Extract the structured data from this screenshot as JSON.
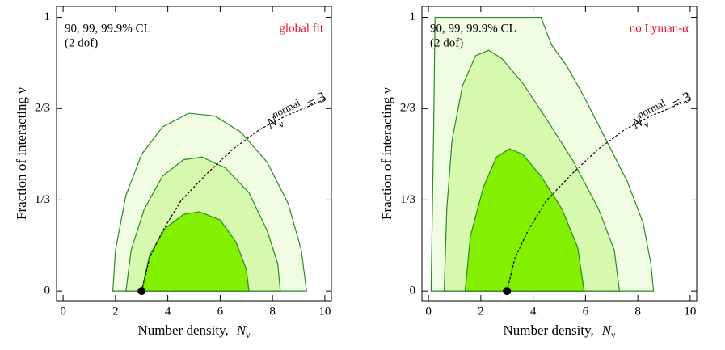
{
  "chart_data": [
    {
      "type": "contour",
      "annotations": [
        "90, 99, 99.9% CL",
        "(2 dof)"
      ],
      "tag": "global fit",
      "tag_color": "#e0102a",
      "xlabel": "Number density,",
      "xlabel_symbol": "N",
      "xlabel_sub": "ν",
      "ylabel": "Fraction of interacting ν",
      "curve_label": {
        "base": "N",
        "sub": "ν",
        "sup": "normal",
        "rest": "= 3"
      },
      "xlim": [
        -0.25,
        10.25
      ],
      "ylim": [
        -0.035,
        1.04
      ],
      "xticks": [
        0,
        2,
        4,
        6,
        8,
        10
      ],
      "yticks": [
        0,
        {
          "value": 0.333,
          "label": "1/3"
        },
        {
          "value": 0.667,
          "label": "2/3"
        },
        1
      ],
      "series": [
        {
          "color": "#f1fde3",
          "x": [
            1.9,
            2.0,
            2.4,
            3.0,
            3.8,
            4.8,
            5.8,
            6.8,
            7.8,
            8.6,
            9.1,
            9.3
          ],
          "y": [
            0,
            0.15,
            0.35,
            0.5,
            0.6,
            0.65,
            0.64,
            0.58,
            0.47,
            0.32,
            0.15,
            0
          ]
        },
        {
          "color": "#d6f9ae",
          "x": [
            2.4,
            2.6,
            3.1,
            3.8,
            4.6,
            5.3,
            6.2,
            7.1,
            7.8,
            8.2,
            8.3
          ],
          "y": [
            0,
            0.15,
            0.3,
            0.42,
            0.48,
            0.49,
            0.45,
            0.36,
            0.22,
            0.1,
            0
          ]
        },
        {
          "color": "#82f000",
          "x": [
            3.0,
            3.3,
            3.9,
            4.6,
            5.2,
            6.0,
            6.6,
            7.0,
            7.1
          ],
          "y": [
            0,
            0.13,
            0.23,
            0.28,
            0.29,
            0.26,
            0.18,
            0.08,
            0
          ]
        }
      ],
      "curve": {
        "x": [
          3,
          3.3,
          3.8,
          4.5,
          5.5,
          6.5,
          7.5,
          8.5,
          10
        ],
        "y": [
          0,
          0.12,
          0.22,
          0.33,
          0.43,
          0.52,
          0.59,
          0.64,
          0.7
        ]
      },
      "point": {
        "x": 3,
        "y": 0
      }
    },
    {
      "type": "contour",
      "annotations": [
        "90, 99, 99.9% CL",
        "(2 dof)"
      ],
      "tag": "no Lyman-α",
      "tag_color": "#e0102a",
      "xlabel": "Number density,",
      "xlabel_symbol": "N",
      "xlabel_sub": "ν",
      "ylabel": "Fraction of interacting ν",
      "curve_label": {
        "base": "N",
        "sub": "ν",
        "sup": "normal",
        "rest": "= 3"
      },
      "xlim": [
        -0.25,
        10.25
      ],
      "ylim": [
        -0.035,
        1.04
      ],
      "xticks": [
        0,
        2,
        4,
        6,
        8,
        10
      ],
      "yticks": [
        0,
        {
          "value": 0.333,
          "label": "1/3"
        },
        {
          "value": 0.667,
          "label": "2/3"
        },
        1
      ],
      "series": [
        {
          "color": "#f1fde3",
          "x": [
            0.1,
            0.15,
            0.2,
            0.25,
            4.3,
            4.7,
            5.3,
            6.0,
            6.8,
            7.6,
            8.2,
            8.5,
            8.6
          ],
          "y": [
            0,
            0.3,
            0.6,
            1.0,
            1.0,
            0.9,
            0.82,
            0.7,
            0.55,
            0.4,
            0.25,
            0.1,
            0
          ]
        },
        {
          "color": "#d6f9ae",
          "x": [
            0.6,
            0.7,
            0.9,
            1.3,
            1.8,
            2.3,
            2.8,
            3.6,
            4.5,
            5.5,
            6.5,
            7.1,
            7.3
          ],
          "y": [
            0,
            0.3,
            0.55,
            0.75,
            0.86,
            0.88,
            0.85,
            0.76,
            0.63,
            0.48,
            0.3,
            0.15,
            0
          ]
        },
        {
          "color": "#82f000",
          "x": [
            1.4,
            1.6,
            2.1,
            2.6,
            3.1,
            3.6,
            4.3,
            5.1,
            5.7,
            5.95
          ],
          "y": [
            0,
            0.2,
            0.38,
            0.49,
            0.52,
            0.5,
            0.42,
            0.3,
            0.16,
            0
          ]
        }
      ],
      "curve": {
        "x": [
          3,
          3.3,
          3.8,
          4.5,
          5.5,
          6.5,
          7.5,
          8.5,
          10
        ],
        "y": [
          0,
          0.12,
          0.22,
          0.33,
          0.43,
          0.52,
          0.59,
          0.64,
          0.7
        ]
      },
      "point": {
        "x": 3,
        "y": 0
      }
    }
  ]
}
